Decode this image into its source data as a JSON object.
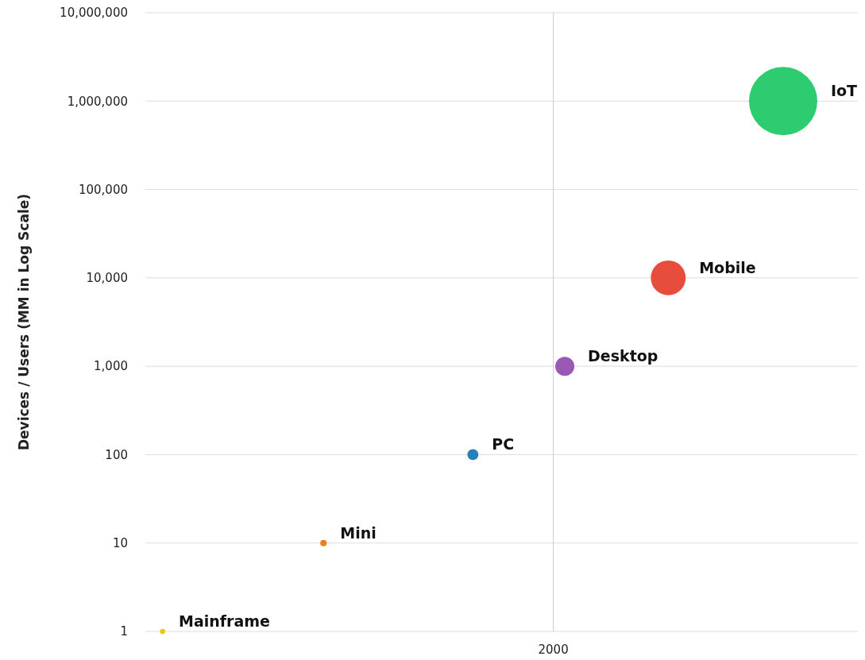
{
  "chart_data": {
    "type": "bubble",
    "ylabel": "Devices / Users (MM in Log Scale)",
    "log": "y",
    "grid": true,
    "ylim": [
      1,
      10000000
    ],
    "yticks": [
      {
        "value": 1,
        "label": "1"
      },
      {
        "value": 10,
        "label": "10"
      },
      {
        "value": 100,
        "label": "100"
      },
      {
        "value": 1000,
        "label": "1,000"
      },
      {
        "value": 10000,
        "label": "10,000"
      },
      {
        "value": 100000,
        "label": "100,000"
      },
      {
        "value": 1000000,
        "label": "1,000,000"
      },
      {
        "value": 10000000,
        "label": "10,000,000"
      }
    ],
    "categories": [
      null,
      null,
      null,
      null,
      null,
      null,
      null,
      null,
      null,
      null,
      null,
      null,
      null,
      null,
      null,
      null,
      null,
      null,
      null,
      null,
      null,
      null,
      null,
      null,
      null,
      null,
      null,
      null,
      null,
      null,
      null,
      null,
      null,
      null,
      null,
      "2000",
      null,
      null,
      null,
      null,
      null,
      null,
      null,
      null,
      null,
      null,
      null,
      null,
      null,
      null,
      null,
      null,
      null,
      null,
      null,
      null,
      null,
      null,
      null,
      null,
      null,
      null
    ],
    "series": [
      {
        "name": "Mainframe",
        "color": "#f1c40f",
        "values": [
          null,
          1,
          null,
          null,
          null,
          null,
          null,
          null,
          null,
          null,
          null,
          null,
          null,
          null,
          null,
          null,
          null,
          null,
          null,
          null,
          null,
          null,
          null,
          null,
          null,
          null,
          null,
          null,
          null,
          null,
          null,
          null,
          null,
          null,
          null,
          null,
          null,
          null,
          null,
          null,
          null,
          null,
          null,
          null,
          null,
          null,
          null,
          null,
          null,
          null,
          null,
          null,
          null,
          null,
          null,
          null,
          null,
          null,
          null,
          null,
          null,
          null
        ],
        "sizes": [
          null,
          0.006,
          null,
          null,
          null,
          null,
          null,
          null,
          null,
          null,
          null,
          null,
          null,
          null,
          null,
          null,
          null,
          null,
          null,
          null,
          null,
          null,
          null,
          null,
          null,
          null,
          null,
          null,
          null,
          null,
          null,
          null,
          null,
          null,
          null,
          null,
          null,
          null,
          null,
          null,
          null,
          null,
          null,
          null,
          null,
          null,
          null,
          null,
          null,
          null,
          null,
          null,
          null,
          null,
          null,
          null,
          null,
          null,
          null,
          null,
          null,
          null
        ]
      },
      {
        "name": "Mini",
        "color": "#e67e22",
        "values": [
          null,
          null,
          null,
          null,
          null,
          null,
          null,
          null,
          null,
          null,
          null,
          null,
          null,
          null,
          null,
          10,
          null,
          null,
          null,
          null,
          null,
          null,
          null,
          null,
          null,
          null,
          null,
          null,
          null,
          null,
          null,
          null,
          null,
          null,
          null,
          null,
          null,
          null,
          null,
          null,
          null,
          null,
          null,
          null,
          null,
          null,
          null,
          null,
          null,
          null,
          null,
          null,
          null,
          null,
          null,
          null,
          null,
          null,
          null,
          null,
          null,
          null
        ],
        "sizes": [
          null,
          null,
          null,
          null,
          null,
          null,
          null,
          null,
          null,
          null,
          null,
          null,
          null,
          null,
          null,
          0.009,
          null,
          null,
          null,
          null,
          null,
          null,
          null,
          null,
          null,
          null,
          null,
          null,
          null,
          null,
          null,
          null,
          null,
          null,
          null,
          null,
          null,
          null,
          null,
          null,
          null,
          null,
          null,
          null,
          null,
          null,
          null,
          null,
          null,
          null,
          null,
          null,
          null,
          null,
          null,
          null,
          null,
          null,
          null,
          null,
          null,
          null
        ]
      },
      {
        "name": "PC",
        "color": "#2980b9",
        "values": [
          null,
          null,
          null,
          null,
          null,
          null,
          null,
          null,
          null,
          null,
          null,
          null,
          null,
          null,
          null,
          null,
          null,
          null,
          null,
          null,
          null,
          null,
          null,
          null,
          null,
          null,
          null,
          null,
          100,
          null,
          null,
          null,
          null,
          null,
          null,
          null,
          null,
          null,
          null,
          null,
          null,
          null,
          null,
          null,
          null,
          null,
          null,
          null,
          null,
          null,
          null,
          null,
          null,
          null,
          null,
          null,
          null,
          null,
          null,
          null,
          null,
          null
        ],
        "sizes": [
          null,
          null,
          null,
          null,
          null,
          null,
          null,
          null,
          null,
          null,
          null,
          null,
          null,
          null,
          null,
          null,
          null,
          null,
          null,
          null,
          null,
          null,
          null,
          null,
          null,
          null,
          null,
          null,
          0.026,
          null,
          null,
          null,
          null,
          null,
          null,
          null,
          null,
          null,
          null,
          null,
          null,
          null,
          null,
          null,
          null,
          null,
          null,
          null,
          null,
          null,
          null,
          null,
          null,
          null,
          null,
          null,
          null,
          null,
          null,
          null,
          null,
          null
        ]
      },
      {
        "name": "Desktop",
        "color": "#9b59b6",
        "values": [
          null,
          null,
          null,
          null,
          null,
          null,
          null,
          null,
          null,
          null,
          null,
          null,
          null,
          null,
          null,
          null,
          null,
          null,
          null,
          null,
          null,
          null,
          null,
          null,
          null,
          null,
          null,
          null,
          null,
          null,
          null,
          null,
          null,
          null,
          null,
          null,
          1000,
          null,
          null,
          null,
          null,
          null,
          null,
          null,
          null,
          null,
          null,
          null,
          null,
          null,
          null,
          null,
          null,
          null,
          null,
          null,
          null,
          null,
          null,
          null,
          null,
          null
        ],
        "sizes": [
          null,
          null,
          null,
          null,
          null,
          null,
          null,
          null,
          null,
          null,
          null,
          null,
          null,
          null,
          null,
          null,
          null,
          null,
          null,
          null,
          null,
          null,
          null,
          null,
          null,
          null,
          null,
          null,
          null,
          null,
          null,
          null,
          null,
          null,
          null,
          null,
          0.078,
          null,
          null,
          null,
          null,
          null,
          null,
          null,
          null,
          null,
          null,
          null,
          null,
          null,
          null,
          null,
          null,
          null,
          null,
          null,
          null,
          null,
          null,
          null,
          null,
          null
        ]
      },
      {
        "name": "Mobile",
        "color": "#e74c3c",
        "values": [
          null,
          null,
          null,
          null,
          null,
          null,
          null,
          null,
          null,
          null,
          null,
          null,
          null,
          null,
          null,
          null,
          null,
          null,
          null,
          null,
          null,
          null,
          null,
          null,
          null,
          null,
          null,
          null,
          null,
          null,
          null,
          null,
          null,
          null,
          null,
          null,
          null,
          null,
          null,
          null,
          null,
          null,
          null,
          null,
          null,
          10000,
          null,
          null,
          null,
          null,
          null,
          null,
          null,
          null,
          null,
          null,
          null,
          null,
          null,
          null,
          null,
          null
        ],
        "sizes": [
          null,
          null,
          null,
          null,
          null,
          null,
          null,
          null,
          null,
          null,
          null,
          null,
          null,
          null,
          null,
          null,
          null,
          null,
          null,
          null,
          null,
          null,
          null,
          null,
          null,
          null,
          null,
          null,
          null,
          null,
          null,
          null,
          null,
          null,
          null,
          null,
          null,
          null,
          null,
          null,
          null,
          null,
          null,
          null,
          null,
          0.26,
          null,
          null,
          null,
          null,
          null,
          null,
          null,
          null,
          null,
          null,
          null,
          null,
          null,
          null,
          null,
          null
        ]
      },
      {
        "name": "IoT",
        "color": "#2ecc71",
        "values": [
          null,
          null,
          null,
          null,
          null,
          null,
          null,
          null,
          null,
          null,
          null,
          null,
          null,
          null,
          null,
          null,
          null,
          null,
          null,
          null,
          null,
          null,
          null,
          null,
          null,
          null,
          null,
          null,
          null,
          null,
          null,
          null,
          null,
          null,
          null,
          null,
          null,
          null,
          null,
          null,
          null,
          null,
          null,
          null,
          null,
          null,
          null,
          null,
          null,
          null,
          null,
          null,
          null,
          null,
          null,
          1000000,
          null,
          null,
          null,
          null,
          null,
          null
        ],
        "sizes": [
          null,
          null,
          null,
          null,
          null,
          null,
          null,
          null,
          null,
          null,
          null,
          null,
          null,
          null,
          null,
          null,
          null,
          null,
          null,
          null,
          null,
          null,
          null,
          null,
          null,
          null,
          null,
          null,
          null,
          null,
          null,
          null,
          null,
          null,
          null,
          null,
          null,
          null,
          null,
          null,
          null,
          null,
          null,
          null,
          null,
          null,
          null,
          null,
          null,
          null,
          null,
          null,
          null,
          null,
          null,
          1,
          null,
          null,
          null,
          null,
          null,
          null
        ]
      }
    ]
  }
}
